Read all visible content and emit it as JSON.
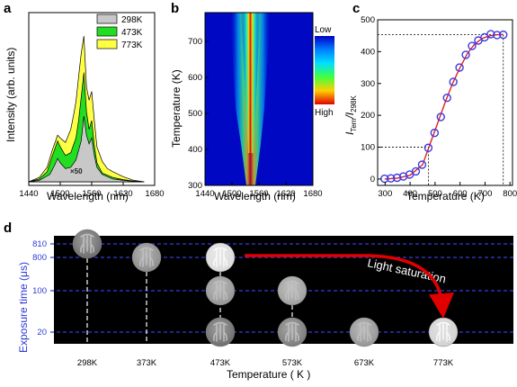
{
  "figure": {
    "panel_labels": [
      "a",
      "b",
      "c",
      "d"
    ]
  },
  "chart_data": [
    {
      "panel": "a",
      "type": "area",
      "xlabel": "Wavelength (nm)",
      "ylabel": "Intensity (arb. units)",
      "xlim": [
        1440,
        1680
      ],
      "xticks": [
        1440,
        1500,
        1560,
        1620,
        1680
      ],
      "annotation": "×50",
      "legend_position": "top-right",
      "series": [
        {
          "name": "298K",
          "color": "#c8c8c8",
          "x": [
            1440,
            1460,
            1480,
            1490,
            1495,
            1500,
            1510,
            1520,
            1530,
            1540,
            1545,
            1550,
            1555,
            1560,
            1565,
            1570,
            1580,
            1600,
            1620,
            1640,
            1660
          ],
          "y": [
            0,
            0.01,
            0.05,
            0.12,
            0.16,
            0.13,
            0.09,
            0.1,
            0.15,
            0.28,
            0.45,
            0.32,
            0.26,
            0.3,
            0.18,
            0.1,
            0.05,
            0.02,
            0.01,
            0.003,
            0
          ]
        },
        {
          "name": "473K",
          "color": "#22dd22",
          "x": [
            1440,
            1460,
            1475,
            1485,
            1495,
            1500,
            1510,
            1520,
            1530,
            1535,
            1540,
            1545,
            1550,
            1555,
            1560,
            1565,
            1570,
            1580,
            1600,
            1620,
            1640,
            1660
          ],
          "y": [
            0,
            0.02,
            0.07,
            0.18,
            0.28,
            0.24,
            0.18,
            0.2,
            0.3,
            0.42,
            0.58,
            0.75,
            0.48,
            0.36,
            0.42,
            0.25,
            0.13,
            0.06,
            0.03,
            0.015,
            0.005,
            0
          ]
        },
        {
          "name": "773K",
          "color": "#ffff44",
          "x": [
            1440,
            1460,
            1475,
            1485,
            1495,
            1500,
            1510,
            1520,
            1525,
            1530,
            1535,
            1540,
            1545,
            1550,
            1555,
            1560,
            1565,
            1570,
            1580,
            1590,
            1600,
            1620,
            1640,
            1660
          ],
          "y": [
            0,
            0.03,
            0.1,
            0.22,
            0.32,
            0.3,
            0.27,
            0.36,
            0.45,
            0.55,
            0.72,
            0.88,
            1.0,
            0.65,
            0.56,
            0.62,
            0.42,
            0.24,
            0.14,
            0.09,
            0.07,
            0.035,
            0.01,
            0
          ]
        }
      ]
    },
    {
      "panel": "b",
      "type": "heatmap",
      "xlabel": "Wavelength (nm)",
      "ylabel": "Temperature (K)",
      "xlim": [
        1440,
        1680
      ],
      "ylim": [
        300,
        780
      ],
      "xticks": [
        1440,
        1500,
        1560,
        1620,
        1680
      ],
      "yticks": [
        300,
        400,
        500,
        600,
        700
      ],
      "colorbar_labels": [
        "Low",
        "High"
      ],
      "peak_wavelength": 1545
    },
    {
      "panel": "c",
      "type": "scatter",
      "xlabel": "Temperature (K)",
      "ylabel_main": "I",
      "ylabel_num_sub": "Tem",
      "ylabel_div": "/I",
      "ylabel_den_sub": "298K",
      "xlim": [
        270,
        810
      ],
      "ylim": [
        -20,
        500
      ],
      "xticks": [
        300,
        400,
        500,
        600,
        700,
        800
      ],
      "yticks": [
        0,
        100,
        200,
        300,
        400,
        500
      ],
      "reference_lines": [
        {
          "x": 473,
          "y": 100
        },
        {
          "x": 773,
          "y": 453
        }
      ],
      "series": [
        {
          "name": "data",
          "color": "#3b3bdf",
          "x": [
            298,
            323,
            348,
            373,
            398,
            423,
            448,
            473,
            498,
            523,
            548,
            573,
            598,
            623,
            648,
            673,
            698,
            723,
            748,
            773
          ],
          "y": [
            1,
            2,
            4,
            8,
            14,
            24,
            45,
            98,
            145,
            195,
            255,
            305,
            350,
            390,
            418,
            435,
            445,
            455,
            452,
            453
          ]
        },
        {
          "name": "fit",
          "color": "#e02020",
          "x": [
            298,
            350,
            400,
            450,
            480,
            510,
            540,
            570,
            600,
            630,
            660,
            690,
            720,
            750,
            773
          ],
          "y": [
            0,
            3,
            12,
            45,
            110,
            175,
            240,
            300,
            350,
            395,
            425,
            442,
            450,
            453,
            454
          ]
        }
      ]
    },
    {
      "panel": "d",
      "type": "scatter",
      "xlabel": "Temperature ( K )",
      "ylabel": "Exposure time (μs)",
      "categories": [
        "298K",
        "373K",
        "473K",
        "573K",
        "673K",
        "773K"
      ],
      "yticks": [
        "810",
        "800",
        "100",
        "20"
      ],
      "annotation": "Light saturation",
      "images": [
        {
          "temperature": "298K",
          "exposure": "810",
          "brightness": 0.35
        },
        {
          "temperature": "373K",
          "exposure": "800",
          "brightness": 0.5
        },
        {
          "temperature": "473K",
          "exposure": "800",
          "brightness": 0.9
        },
        {
          "temperature": "473K",
          "exposure": "100",
          "brightness": 0.55
        },
        {
          "temperature": "473K",
          "exposure": "20",
          "brightness": 0.35
        },
        {
          "temperature": "573K",
          "exposure": "100",
          "brightness": 0.6
        },
        {
          "temperature": "573K",
          "exposure": "20",
          "brightness": 0.42
        },
        {
          "temperature": "673K",
          "exposure": "20",
          "brightness": 0.55
        },
        {
          "temperature": "773K",
          "exposure": "20",
          "brightness": 0.85
        }
      ]
    }
  ]
}
